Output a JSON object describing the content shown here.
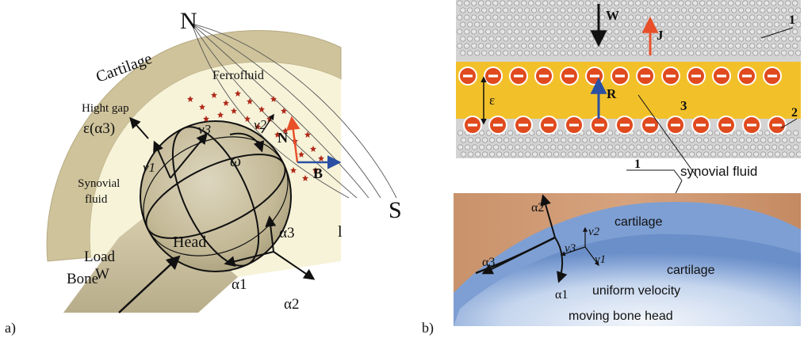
{
  "panel_a": {
    "caption": "a)",
    "north": "N",
    "south": "S",
    "cartilage": "Cartilage",
    "ferrofluid": "Ferrofluid",
    "height_gap": "Hight gap",
    "epsilon_alpha3": "ε(α3)",
    "synovial_fluid": [
      "Synovial",
      "fluid"
    ],
    "head": "Head",
    "load": "Load",
    "w": "W",
    "bone": "Bone",
    "omega": "ω",
    "b": "B",
    "n": "N",
    "l": "l",
    "v1": "v1",
    "v2": "v2",
    "v3": "v3",
    "alpha1": "α1",
    "alpha2": "α2",
    "alpha3": "α3",
    "colors": {
      "north": "#e8502a",
      "south": "#2a4fa3",
      "cartilage": "#cfc39b",
      "synovial": "#f7f3d9",
      "head": "#c8bea0",
      "ferro": "#b02a1a"
    }
  },
  "panel_b": {
    "caption": "b)",
    "w": "W",
    "j": "J",
    "r": "R",
    "epsilon": "ε",
    "num1": "1",
    "num2": "2",
    "num3": "3",
    "synovial_fluid": "synovial fluid",
    "cartilage_top": "cartilage",
    "cartilage_bottom": "cartilage",
    "uniform_velocity": "uniform velocity",
    "moving_bone_head": "moving bone head",
    "v1": "v1",
    "v2": "v2",
    "v3": "v3",
    "alpha1": "α1",
    "alpha2": "α2",
    "alpha3": "α3",
    "colors": {
      "fluid_band": "#f2c12a",
      "lipid": "#c9c9c9",
      "charge": "#e04a1e",
      "r_arrow": "#2a4fa3",
      "j_arrow": "#e8502a"
    }
  }
}
